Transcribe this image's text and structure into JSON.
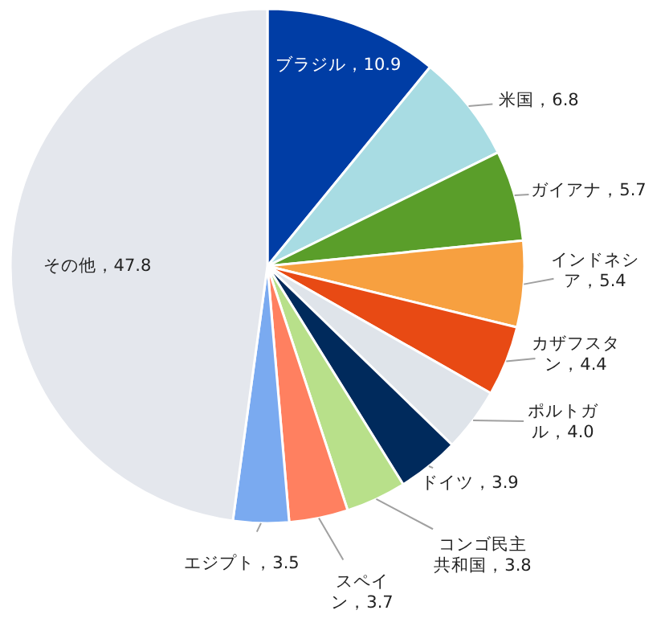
{
  "chart_data": {
    "type": "pie",
    "categories": [
      "ブラジル",
      "米国",
      "ガイアナ",
      "インドネシア",
      "カザフスタン",
      "ポルトガル",
      "ドイツ",
      "コンゴ民主共和国",
      "スペイン",
      "エジプト",
      "その他"
    ],
    "values": [
      10.9,
      6.8,
      5.7,
      5.4,
      4.4,
      4.0,
      3.9,
      3.8,
      3.7,
      3.5,
      47.8
    ],
    "colors": [
      "#003da5",
      "#a8dce3",
      "#5a9e2a",
      "#f7a040",
      "#e84a14",
      "#dfe4ea",
      "#002a5c",
      "#b8e08a",
      "#ff8060",
      "#7aaaf0",
      "#e4e7ed"
    ],
    "value_labels": [
      "10.9",
      "6.8",
      "5.7",
      "5.4",
      "4.4",
      "4.0",
      "3.9",
      "3.8",
      "3.7",
      "3.5",
      "47.8"
    ]
  }
}
